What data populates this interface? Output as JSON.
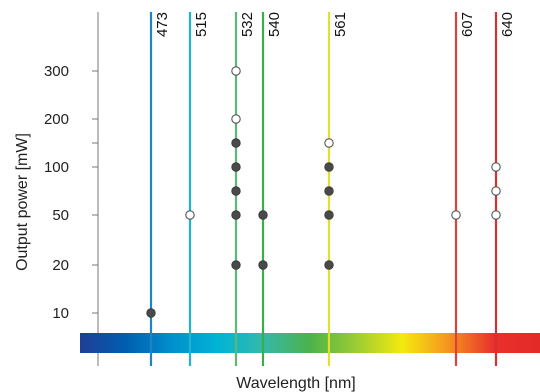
{
  "chart_data": {
    "type": "scatter",
    "xlabel": "Wavelength [nm]",
    "ylabel": "Output power  [mW]",
    "y_ticks": [
      10,
      20,
      50,
      100,
      150,
      200,
      300
    ],
    "y_tick_labels": [
      "10",
      "20",
      "50",
      "100",
      "",
      "200",
      "300"
    ],
    "y_scale": "categorical",
    "x_axis": "wavelength spectrum bar",
    "wavelength_lines": [
      {
        "wavelength": 473,
        "label": "473",
        "color": "#1f83c6"
      },
      {
        "wavelength": 515,
        "label": "515",
        "color": "#20b3cc"
      },
      {
        "wavelength": 532,
        "label": "532",
        "color": "#5cb874"
      },
      {
        "wavelength": 540,
        "label": "540",
        "color": "#3dac4d"
      },
      {
        "wavelength": 561,
        "label": "561",
        "color": "#e2e02c"
      },
      {
        "wavelength": 607,
        "label": "607",
        "color": "#e0403a"
      },
      {
        "wavelength": 640,
        "label": "640",
        "color": "#d83032"
      }
    ],
    "points": [
      {
        "wavelength": 473,
        "power": 10,
        "filled": true
      },
      {
        "wavelength": 515,
        "power": 50,
        "filled": false
      },
      {
        "wavelength": 532,
        "power": 20,
        "filled": true
      },
      {
        "wavelength": 532,
        "power": 50,
        "filled": true
      },
      {
        "wavelength": 532,
        "power": 75,
        "filled": true
      },
      {
        "wavelength": 532,
        "power": 100,
        "filled": true
      },
      {
        "wavelength": 532,
        "power": 150,
        "filled": true
      },
      {
        "wavelength": 532,
        "power": 200,
        "filled": false
      },
      {
        "wavelength": 532,
        "power": 300,
        "filled": false
      },
      {
        "wavelength": 540,
        "power": 20,
        "filled": true
      },
      {
        "wavelength": 540,
        "power": 50,
        "filled": true
      },
      {
        "wavelength": 561,
        "power": 20,
        "filled": true
      },
      {
        "wavelength": 561,
        "power": 50,
        "filled": true
      },
      {
        "wavelength": 561,
        "power": 75,
        "filled": true
      },
      {
        "wavelength": 561,
        "power": 100,
        "filled": true
      },
      {
        "wavelength": 561,
        "power": 150,
        "filled": false
      },
      {
        "wavelength": 607,
        "power": 50,
        "filled": false
      },
      {
        "wavelength": 640,
        "power": 50,
        "filled": false
      },
      {
        "wavelength": 640,
        "power": 75,
        "filled": false
      },
      {
        "wavelength": 640,
        "power": 100,
        "filled": false
      }
    ],
    "spectrum_colors": [
      "#1f3f95",
      "#005eb0",
      "#0090cc",
      "#00b4d6",
      "#36b8a8",
      "#4cb24a",
      "#9ccc33",
      "#f4ea0e",
      "#f5951f",
      "#e8302c",
      "#e42a27"
    ]
  }
}
